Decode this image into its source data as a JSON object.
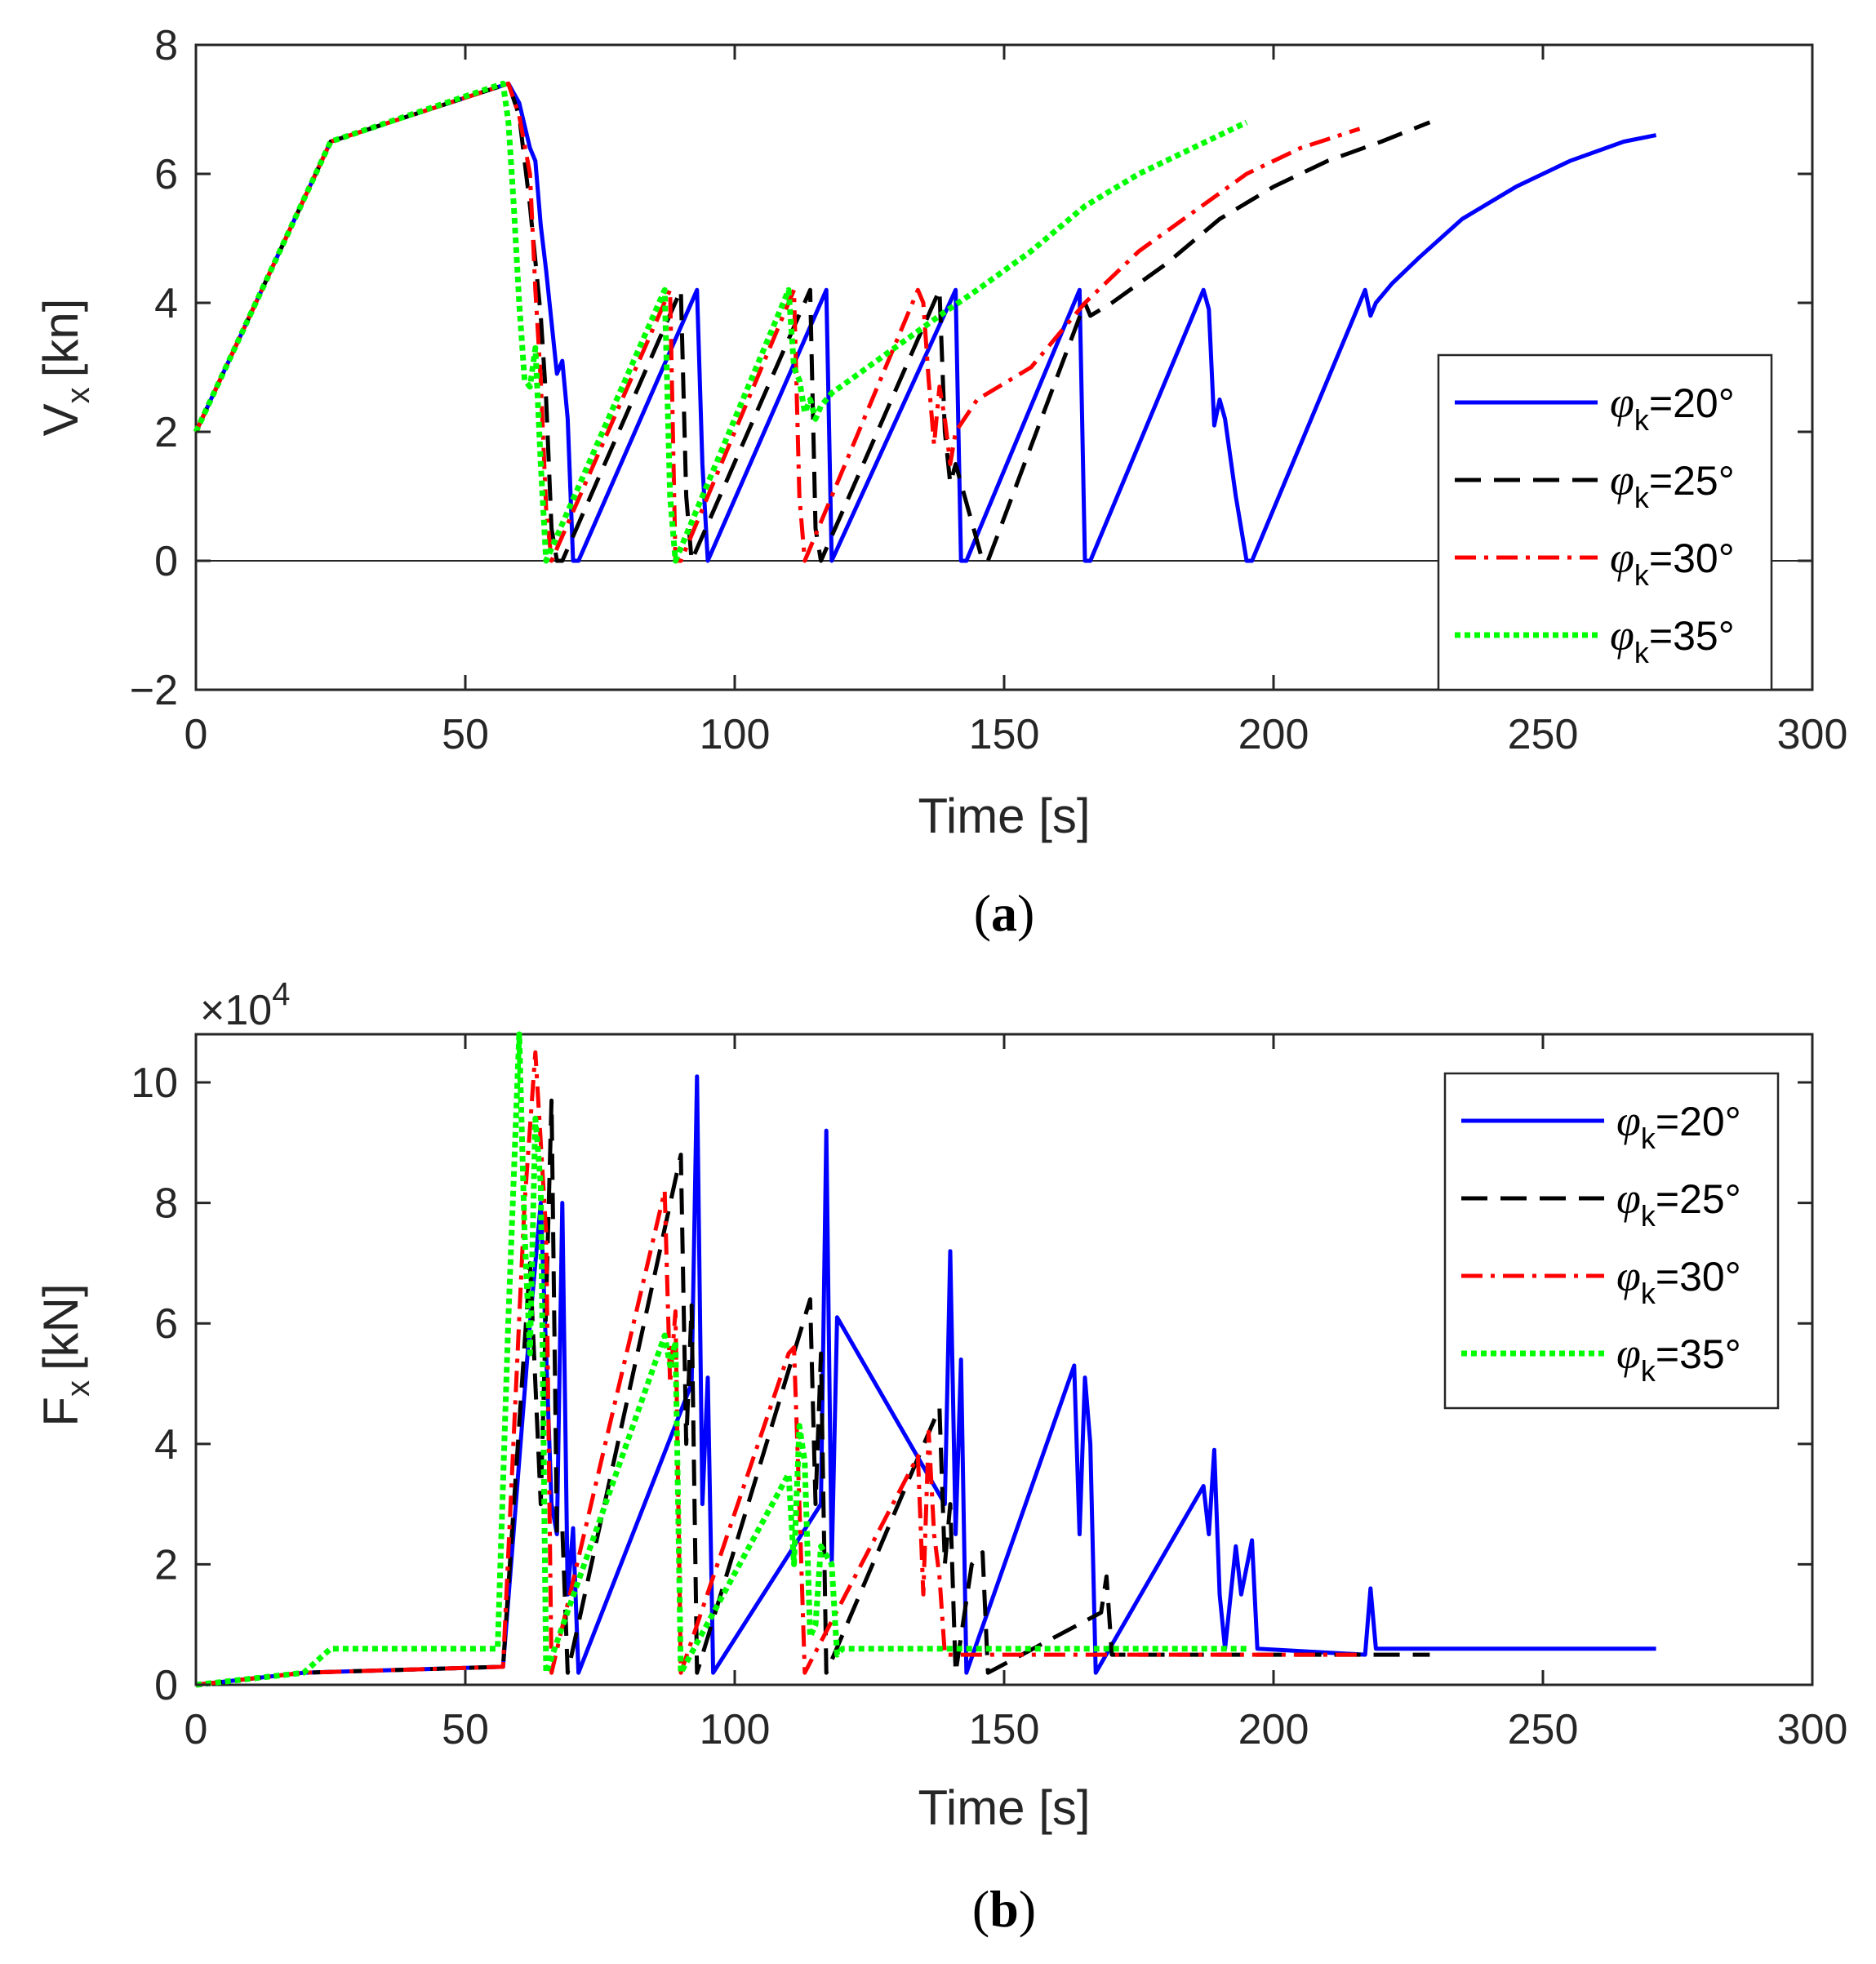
{
  "chart_data": [
    {
      "type": "line",
      "panel_label": "a",
      "xlabel": "Time [s]",
      "ylabel_main": "V",
      "ylabel_sub": "x",
      "ylabel_unit": "[kn]",
      "xlim": [
        0,
        300
      ],
      "ylim": [
        -2,
        8
      ],
      "xticks": [
        0,
        50,
        100,
        150,
        200,
        250,
        300
      ],
      "yticks": [
        -2,
        0,
        2,
        4,
        6,
        8
      ],
      "ytick_labels": [
        "−2",
        "0",
        "2",
        "4",
        "6",
        "8"
      ],
      "legend_position": "lower-right",
      "series": [
        {
          "name": "φk=20°",
          "color": "#0000ff",
          "style": "solid",
          "x": [
            0,
            25,
            58,
            60,
            62,
            63,
            64,
            65,
            67,
            68,
            69,
            70,
            71,
            93,
            94,
            95,
            117,
            118,
            141,
            142,
            143,
            164,
            165,
            166,
            187,
            188,
            189,
            190,
            191,
            193,
            195,
            196,
            217,
            218,
            219,
            222,
            227,
            235,
            245,
            255,
            265,
            271
          ],
          "y": [
            2,
            6.5,
            7.4,
            7.1,
            6.4,
            6.2,
            5.2,
            4.5,
            2.9,
            3.1,
            2.2,
            0,
            0,
            4.2,
            1.5,
            0,
            4.2,
            0,
            4.2,
            0,
            0,
            4.2,
            0,
            0,
            4.2,
            3.9,
            2.1,
            2.5,
            2.2,
            1.0,
            0,
            0,
            4.2,
            3.8,
            4.0,
            4.3,
            4.7,
            5.3,
            5.8,
            6.2,
            6.5,
            6.6
          ]
        },
        {
          "name": "φk=25°",
          "color": "#000000",
          "style": "dashed",
          "x": [
            0,
            25,
            58,
            60,
            62,
            64,
            65,
            66,
            67,
            68,
            90,
            91,
            92,
            114,
            115,
            116,
            138,
            139,
            140,
            141,
            146,
            147,
            165,
            166,
            170,
            180,
            190,
            200,
            210,
            220,
            229
          ],
          "y": [
            2,
            6.5,
            7.4,
            6.9,
            5.5,
            3.8,
            2.5,
            0.5,
            0,
            0,
            4.2,
            1.0,
            0,
            4.2,
            0.5,
            0,
            4.2,
            2.0,
            1.2,
            1.5,
            0,
            0,
            4.0,
            3.8,
            4.0,
            4.6,
            5.3,
            5.8,
            6.2,
            6.5,
            6.8
          ]
        },
        {
          "name": "φk=30°",
          "color": "#ff0000",
          "style": "dashdot",
          "x": [
            0,
            25,
            58,
            60,
            62,
            63,
            64,
            65,
            66,
            88,
            89,
            90,
            111,
            112,
            113,
            134,
            135,
            136,
            137,
            138,
            139,
            140,
            141,
            145,
            155,
            165,
            175,
            185,
            195,
            205,
            216
          ],
          "y": [
            2,
            6.5,
            7.4,
            6.9,
            6.0,
            4.2,
            2.8,
            0.8,
            0,
            4.2,
            0,
            0,
            4.2,
            1.0,
            0,
            4.2,
            4.0,
            2.8,
            1.8,
            2.7,
            2.2,
            1.5,
            2.0,
            2.5,
            3.0,
            4.0,
            4.8,
            5.4,
            6.0,
            6.4,
            6.7
          ]
        },
        {
          "name": "φk=35°",
          "color": "#00ff00",
          "style": "dotted",
          "x": [
            0,
            25,
            57,
            58,
            59,
            60,
            61,
            62,
            63,
            64,
            65,
            87,
            88,
            89,
            110,
            111,
            112,
            113,
            114,
            115,
            116,
            118,
            128,
            138,
            145,
            155,
            165,
            175,
            185,
            195
          ],
          "y": [
            2,
            6.5,
            7.4,
            6.8,
            5.5,
            4.0,
            2.8,
            2.7,
            3.3,
            1.5,
            0,
            4.2,
            1.0,
            0,
            4.2,
            3.0,
            2.8,
            2.3,
            2.5,
            2.2,
            2.4,
            2.6,
            3.2,
            3.8,
            4.2,
            4.8,
            5.5,
            6.0,
            6.4,
            6.8
          ]
        }
      ]
    },
    {
      "type": "line",
      "panel_label": "b",
      "xlabel": "Time [s]",
      "ylabel_main": "F",
      "ylabel_sub": "x",
      "ylabel_unit": "[kN]",
      "multiplier": "×10",
      "multiplier_exp": "4",
      "xlim": [
        0,
        300
      ],
      "ylim": [
        0,
        10.8
      ],
      "xticks": [
        0,
        50,
        100,
        150,
        200,
        250,
        300
      ],
      "yticks": [
        0,
        2,
        4,
        6,
        8,
        10
      ],
      "legend_position": "top-right",
      "series": [
        {
          "name": "φk=20°",
          "color": "#0000ff",
          "style": "solid",
          "x": [
            0,
            20,
            57,
            62,
            64,
            66,
            67,
            68,
            69,
            70,
            71,
            92,
            93,
            94,
            95,
            96,
            116,
            117,
            118,
            119,
            139,
            140,
            141,
            142,
            143,
            163,
            164,
            165,
            166,
            167,
            187,
            188,
            189,
            190,
            191,
            193,
            194,
            196,
            197,
            217,
            218,
            219,
            225,
            235,
            245,
            255,
            265,
            271
          ],
          "y": [
            0,
            0.2,
            0.3,
            6.0,
            8.0,
            3.0,
            2.5,
            8.0,
            1.5,
            2.6,
            0.2,
            5.0,
            10.1,
            3.0,
            5.1,
            0.2,
            3.0,
            9.2,
            2.0,
            6.1,
            3.0,
            7.2,
            2.5,
            5.4,
            0.2,
            5.3,
            2.5,
            5.1,
            4.0,
            0.2,
            3.3,
            2.5,
            3.9,
            1.5,
            0.6,
            2.3,
            1.5,
            2.4,
            0.6,
            0.5,
            1.6,
            0.6,
            0.6,
            0.6,
            0.6,
            0.6,
            0.6,
            0.6
          ]
        },
        {
          "name": "φk=25°",
          "color": "#000000",
          "style": "dashed",
          "x": [
            0,
            20,
            57,
            62,
            64,
            66,
            67,
            68,
            69,
            90,
            91,
            92,
            93,
            114,
            115,
            116,
            117,
            138,
            139,
            140,
            141,
            144,
            146,
            147,
            168,
            169,
            170,
            180,
            190,
            200,
            210,
            220,
            229
          ],
          "y": [
            0,
            0.2,
            0.3,
            7.0,
            3.0,
            9.7,
            2.5,
            2.6,
            0.2,
            8.8,
            4.0,
            6.3,
            0.2,
            6.4,
            3.0,
            5.5,
            0.2,
            4.6,
            2.0,
            3.0,
            0.2,
            2.0,
            2.2,
            0.2,
            1.2,
            1.8,
            0.5,
            0.5,
            0.5,
            0.5,
            0.5,
            0.5,
            0.5
          ]
        },
        {
          "name": "φk=30°",
          "color": "#ff0000",
          "style": "dashdot",
          "x": [
            0,
            20,
            57,
            61,
            63,
            65,
            66,
            87,
            88,
            89,
            90,
            110,
            111,
            112,
            113,
            134,
            135,
            136,
            137,
            138,
            139,
            150,
            160,
            170,
            180,
            190,
            200,
            210,
            216
          ],
          "y": [
            0,
            0.2,
            0.3,
            8.0,
            10.5,
            7.5,
            0.2,
            8.2,
            5.0,
            6.2,
            0.2,
            5.5,
            5.6,
            3.0,
            0.2,
            3.8,
            1.5,
            4.2,
            2.5,
            1.8,
            0.5,
            0.5,
            0.5,
            0.5,
            0.5,
            0.5,
            0.5,
            0.5,
            0.5
          ]
        },
        {
          "name": "φk=35°",
          "color": "#00ff00",
          "style": "dotted",
          "x": [
            0,
            20,
            25,
            56,
            58,
            60,
            61,
            62,
            63,
            64,
            65,
            87,
            88,
            89,
            90,
            110,
            111,
            112,
            113,
            114,
            115,
            116,
            118,
            119,
            120,
            130,
            140,
            150,
            160,
            170,
            180,
            190,
            195
          ],
          "y": [
            0,
            0.2,
            0.6,
            0.6,
            6.1,
            10.8,
            7.5,
            5.5,
            9.4,
            8.3,
            0.2,
            5.8,
            5.3,
            5.7,
            0.2,
            3.5,
            2.0,
            4.3,
            3.7,
            0.8,
            1.0,
            2.3,
            2.0,
            0.5,
            0.6,
            0.6,
            0.6,
            0.6,
            0.6,
            0.6,
            0.6,
            0.6,
            0.6
          ]
        }
      ]
    }
  ]
}
